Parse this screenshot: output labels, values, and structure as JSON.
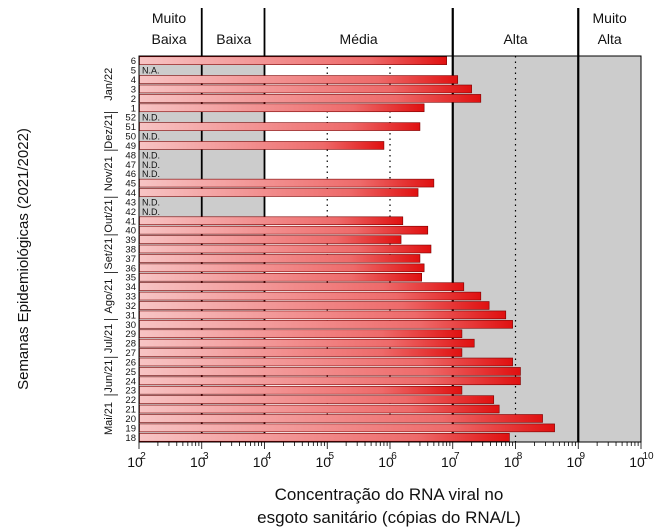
{
  "chart_data": {
    "type": "bar",
    "orientation": "horizontal",
    "x_scale": "log10",
    "xlim": [
      100,
      10000000000
    ],
    "xlabel_line1": "Concentração do RNA viral no",
    "xlabel_line2": "esgoto sanitário (cópias do RNA/L)",
    "ylabel": "Semanas Epidemiológicas (2021/2022)",
    "x_ticks": [
      {
        "exp": 2,
        "base": "10",
        "sup": "2"
      },
      {
        "exp": 3,
        "base": "10",
        "sup": "3"
      },
      {
        "exp": 4,
        "base": "10",
        "sup": "4"
      },
      {
        "exp": 5,
        "base": "10",
        "sup": "5"
      },
      {
        "exp": 6,
        "base": "10",
        "sup": "6"
      },
      {
        "exp": 7,
        "base": "10",
        "sup": "7"
      },
      {
        "exp": 8,
        "base": "10",
        "sup": "8"
      },
      {
        "exp": 9,
        "base": "10",
        "sup": "9"
      },
      {
        "exp": 10,
        "base": "10",
        "sup": "10"
      }
    ],
    "bands": [
      {
        "line1": "Muito",
        "line2": "Baixa",
        "from": 100,
        "to": 1000,
        "color": "#cccccc"
      },
      {
        "line1": "",
        "line2": "Baixa",
        "from": 1000,
        "to": 10000,
        "color": "#cccccc"
      },
      {
        "line1": "",
        "line2": "Média",
        "from": 10000,
        "to": 10000000,
        "color": "#ffffff"
      },
      {
        "line1": "",
        "line2": "Alta",
        "from": 10000000,
        "to": 1000000000,
        "color": "#cccccc"
      },
      {
        "line1": "Muito",
        "line2": "Alta",
        "from": 1000000000,
        "to": 10000000000,
        "color": "#cccccc"
      }
    ],
    "solid_lines": [
      1000,
      10000,
      10000000,
      1000000000
    ],
    "dotted_lines": [
      100000,
      1000000,
      100000000
    ],
    "categories": [
      "6",
      "5",
      "4",
      "3",
      "2",
      "1",
      "52",
      "51",
      "50",
      "49",
      "48",
      "47",
      "46",
      "45",
      "44",
      "43",
      "42",
      "41",
      "40",
      "39",
      "38",
      "37",
      "36",
      "35",
      "34",
      "33",
      "32",
      "31",
      "30",
      "29",
      "28",
      "27",
      "26",
      "25",
      "24",
      "23",
      "22",
      "21",
      "20",
      "19",
      "18"
    ],
    "values": [
      8000000,
      null,
      12000000,
      20000000,
      28000000,
      3500000,
      null,
      3000000,
      null,
      800000,
      null,
      null,
      null,
      5000000,
      2800000,
      null,
      null,
      1600000,
      4000000,
      1500000,
      4500000,
      3000000,
      3500000,
      3200000,
      15000000,
      28000000,
      38000000,
      70000000,
      90000000,
      14000000,
      22000000,
      14000000,
      90000000,
      120000000,
      120000000,
      14000000,
      45000000,
      55000000,
      270000000,
      420000000,
      80000000
    ],
    "value_labels": [
      "",
      "N.A.",
      "",
      "",
      "",
      "",
      "N.D.",
      "",
      "N.D.",
      "",
      "N.D.",
      "N.D.",
      "N.D.",
      "",
      "",
      "N.D.",
      "N.D.",
      "",
      "",
      "",
      "",
      "",
      "",
      "",
      "",
      "",
      "",
      "",
      "",
      "",
      "",
      "",
      "",
      "",
      "",
      "",
      "",
      "",
      "",
      "",
      ""
    ],
    "month_groups": [
      {
        "label": "Jan/22",
        "first": 0,
        "last": 5
      },
      {
        "label": "Dez/21",
        "first": 6,
        "last": 9
      },
      {
        "label": "Nov/21",
        "first": 10,
        "last": 14
      },
      {
        "label": "Out/21",
        "first": 15,
        "last": 18
      },
      {
        "label": "Set/21",
        "first": 19,
        "last": 22
      },
      {
        "label": "Ago/21",
        "first": 23,
        "last": 27
      },
      {
        "label": "Jul/21",
        "first": 28,
        "last": 31
      },
      {
        "label": "Jun/21",
        "first": 32,
        "last": 35
      },
      {
        "label": "Mai/21",
        "first": 36,
        "last": 40
      }
    ],
    "colors": {
      "bar_light": "#f7c4c4",
      "bar_dark": "#e01010",
      "bar_stroke": "#7a0000"
    }
  }
}
